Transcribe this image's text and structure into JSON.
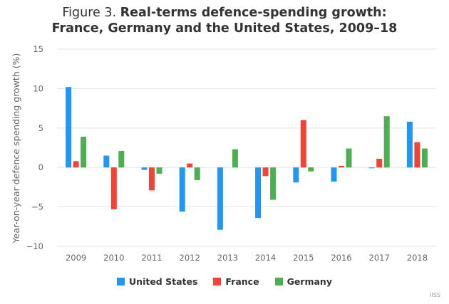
{
  "chart_data": {
    "type": "bar",
    "title_lead": "Figure 3.",
    "title_line1": "Real-terms defence-spending growth:",
    "title_line2": "France, Germany and the United States, 2009–18",
    "xlabel": "",
    "ylabel": "Year-on-year defence spending growth (%)",
    "ylim": [
      -10,
      15
    ],
    "yticks": [
      -10,
      -5,
      0,
      5,
      10,
      15
    ],
    "grid": true,
    "legend_position": "bottom-center",
    "categories": [
      "2009",
      "2010",
      "2011",
      "2012",
      "2013",
      "2014",
      "2015",
      "2016",
      "2017",
      "2018"
    ],
    "series": [
      {
        "name": "United States",
        "color": "#2196f3",
        "values": [
          10.2,
          1.5,
          -0.3,
          -5.6,
          -7.9,
          -6.4,
          -1.9,
          -1.8,
          -0.1,
          5.8
        ]
      },
      {
        "name": "France",
        "color": "#f44336",
        "values": [
          0.8,
          -5.3,
          -2.9,
          0.5,
          0.0,
          -1.1,
          6.0,
          0.2,
          1.1,
          3.2
        ]
      },
      {
        "name": "Germany",
        "color": "#4caf50",
        "values": [
          3.9,
          2.1,
          -0.8,
          -1.6,
          2.3,
          -4.1,
          -0.5,
          2.4,
          6.5,
          2.4
        ]
      }
    ],
    "credit": "IISS"
  }
}
